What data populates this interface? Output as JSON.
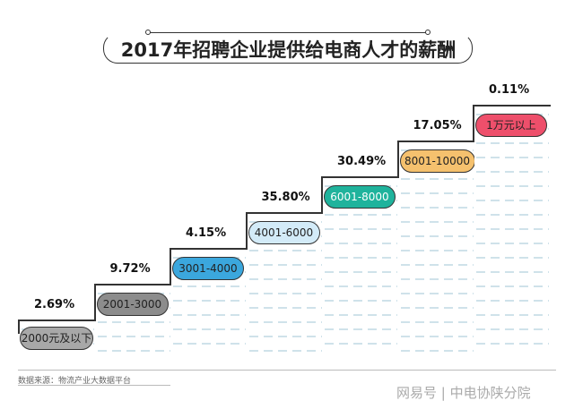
{
  "chart_data": {
    "type": "bar",
    "title": "2017年招聘企业提供给电商人才的薪酬",
    "categories": [
      "2000元及以下",
      "2001-3000",
      "3001-4000",
      "4001-6000",
      "6001-8000",
      "8001-10000",
      "1万元以上"
    ],
    "values": [
      2.69,
      9.72,
      4.15,
      35.8,
      30.49,
      17.05,
      0.11
    ],
    "value_labels": [
      "2.69%",
      "9.72%",
      "4.15%",
      "35.80%",
      "30.49%",
      "17.05%",
      "0.11%"
    ],
    "colors": [
      "#a8a8a8",
      "#8c8c8c",
      "#3ba7dd",
      "#d3ebf8",
      "#1fb39c",
      "#f5c16e",
      "#ee4f6b"
    ],
    "source": "数据来源：物流产业大数据平台"
  },
  "watermark": "网易号 | 中电协陕分院"
}
